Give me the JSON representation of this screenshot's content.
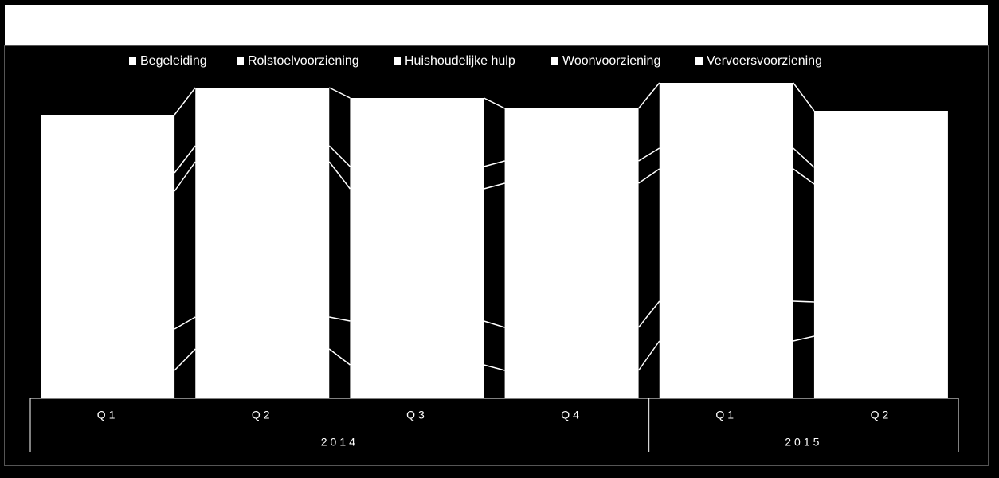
{
  "chart_data": {
    "type": "stacked-bar",
    "groups": [
      {
        "label": "2014",
        "categories": [
          "Q1",
          "Q2",
          "Q3",
          "Q4"
        ]
      },
      {
        "label": "2015",
        "categories": [
          "Q1",
          "Q2"
        ]
      }
    ],
    "series": [
      {
        "name": "Begeleiding",
        "color": "#ffffff",
        "values": [
          35,
          62,
          42,
          35,
          72,
          78
        ]
      },
      {
        "name": "Rolstoelvoorziening",
        "color": "#ffffff",
        "values": [
          52,
          40,
          55,
          54,
          50,
          43
        ]
      },
      {
        "name": "Huishoudelijke hulp",
        "color": "#ffffff",
        "values": [
          173,
          195,
          166,
          181,
          166,
          148
        ]
      },
      {
        "name": "Woonvoorziening",
        "color": "#ffffff",
        "values": [
          23,
          20,
          28,
          28,
          26,
          21
        ]
      },
      {
        "name": "Vervoersvoorziening",
        "color": "#ffffff",
        "values": [
          73,
          73,
          86,
          66,
          82,
          71
        ]
      }
    ],
    "ylim": [
      0,
      442
    ],
    "series_lines": true,
    "legend": "top"
  }
}
